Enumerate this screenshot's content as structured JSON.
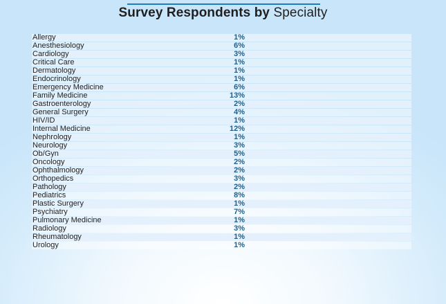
{
  "title_bold": "Survey Respondents by",
  "title_light": "Specialty",
  "chart_data": {
    "type": "table",
    "title": "Survey Respondents by Specialty",
    "categories": [
      "Allergy",
      "Anesthesiology",
      "Cardiology",
      "Critical Care",
      "Dermatology",
      "Endocrinology",
      "Emergency Medicine",
      "Family Medicine",
      "Gastroenterology",
      "General Surgery",
      "HIV/ID",
      "Internal Medicine",
      "Nephrology",
      "Neurology",
      "Ob/Gyn",
      "Oncology",
      "Ophthalmology",
      "Orthopedics",
      "Pathology",
      "Pediatrics",
      "Plastic Surgery",
      "Psychiatry",
      "Pulmonary Medicine",
      "Radiology",
      "Rheumatology",
      "Urology"
    ],
    "values": [
      "1%",
      "6%",
      "3%",
      "1%",
      "1%",
      "1%",
      "6%",
      "13%",
      "2%",
      "4%",
      "1%",
      "12%",
      "1%",
      "3%",
      "5%",
      "2%",
      "2%",
      "3%",
      "2%",
      "8%",
      "1%",
      "7%",
      "1%",
      "3%",
      "1%",
      "1%"
    ],
    "colors": {
      "accent": "#1d7fb8",
      "value_text": "#1d5f8c",
      "row_band": "#e4f1fc"
    }
  }
}
